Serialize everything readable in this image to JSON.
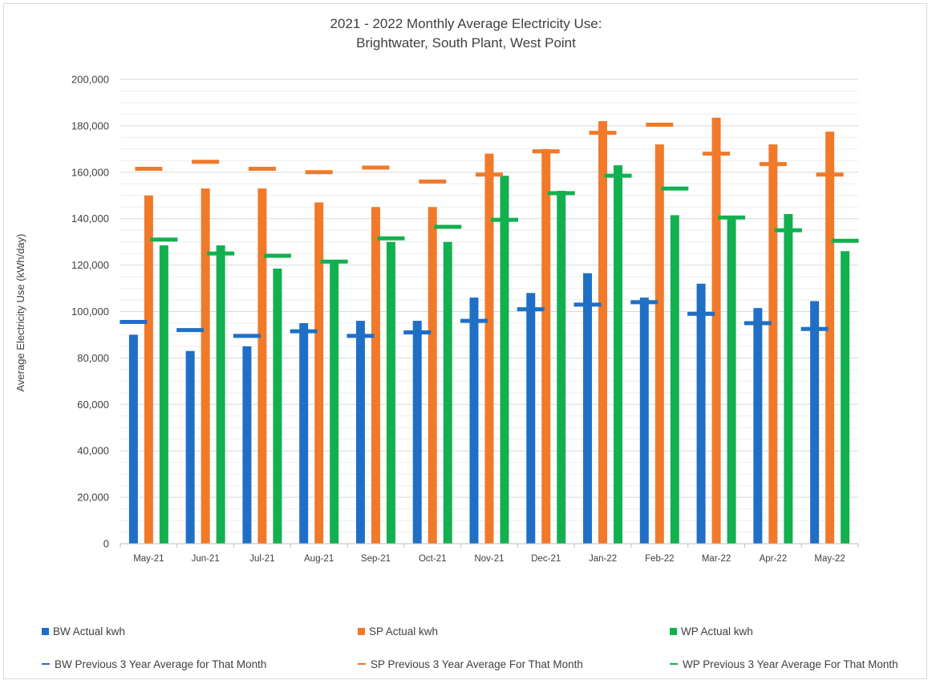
{
  "chart_data": {
    "type": "bar",
    "title_line1": "2021 - 2022 Monthly Average Electricity Use:",
    "title_line2": "Brightwater, South Plant, West Point",
    "xlabel": "",
    "ylabel": "Average Electricity Use (kWh/day)",
    "ylim": [
      0,
      200000
    ],
    "yticks": [
      0,
      20000,
      40000,
      60000,
      80000,
      100000,
      120000,
      140000,
      160000,
      180000,
      200000
    ],
    "ytick_labels": [
      "0",
      "20,000",
      "40,000",
      "60,000",
      "80,000",
      "100,000",
      "120,000",
      "140,000",
      "160,000",
      "180,000",
      "200,000"
    ],
    "grid": true,
    "legend_position": "bottom",
    "categories": [
      "May-21",
      "Jun-21",
      "Jul-21",
      "Aug-21",
      "Sep-21",
      "Oct-21",
      "Nov-21",
      "Dec-21",
      "Jan-22",
      "Feb-22",
      "Mar-22",
      "Apr-22",
      "May-22"
    ],
    "series": [
      {
        "name": "BW Actual kwh",
        "kind": "bar",
        "color": "#1f6fc6",
        "values": [
          90000,
          83000,
          85000,
          95000,
          96000,
          96000,
          106000,
          108000,
          116500,
          106000,
          112000,
          101500,
          104500
        ]
      },
      {
        "name": "SP Actual kwh",
        "kind": "bar",
        "color": "#f07a2a",
        "values": [
          150000,
          153000,
          153000,
          147000,
          145000,
          145000,
          168000,
          170000,
          182000,
          172000,
          183500,
          172000,
          177500
        ]
      },
      {
        "name": "WP Actual kwh",
        "kind": "bar",
        "color": "#13b050",
        "values": [
          128500,
          128500,
          118500,
          122000,
          130000,
          130000,
          158500,
          152000,
          163000,
          141500,
          141000,
          142000,
          126000
        ]
      },
      {
        "name": "BW Previous 3 Year Average for That Month",
        "kind": "marker",
        "color": "#1f6fc6",
        "values": [
          95500,
          92000,
          89500,
          91500,
          89500,
          91000,
          96000,
          101000,
          103000,
          104000,
          99000,
          95000,
          92500
        ]
      },
      {
        "name": "SP Previous 3 Year Average For That Month",
        "kind": "marker",
        "color": "#f07a2a",
        "values": [
          161500,
          164500,
          161500,
          160000,
          162000,
          156000,
          159000,
          169000,
          177000,
          180500,
          168000,
          163500,
          159000
        ]
      },
      {
        "name": "WP Previous 3 Year Average For That Month",
        "kind": "marker",
        "color": "#13b050",
        "values": [
          131000,
          125000,
          124000,
          121500,
          131500,
          136500,
          139500,
          151000,
          158500,
          153000,
          140500,
          135000,
          130500
        ]
      }
    ]
  }
}
